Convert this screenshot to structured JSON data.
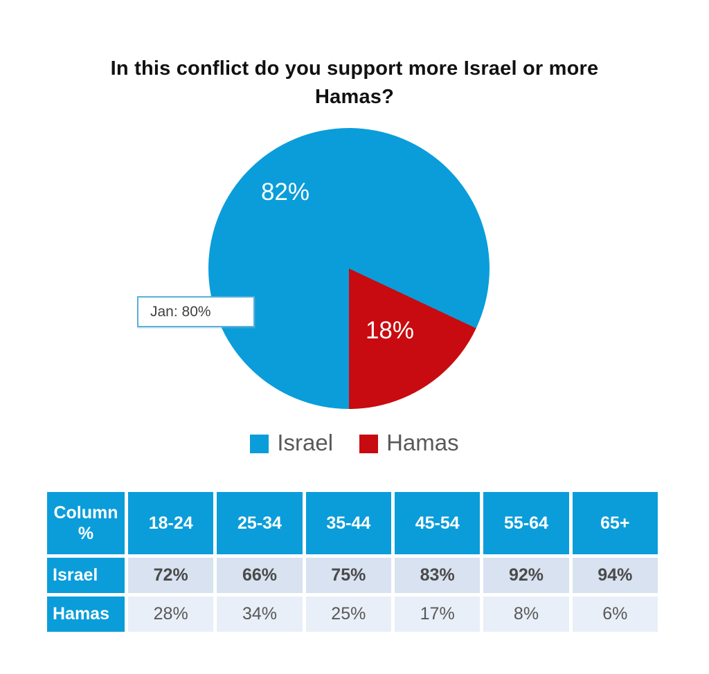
{
  "title": {
    "line1": "In this conflict do you support more Israel or more",
    "line2": "Hamas?"
  },
  "pie": {
    "israel_label": "82%",
    "hamas_label": "18%",
    "callout": "Jan: 80%"
  },
  "legend": {
    "items": [
      {
        "label": "Israel",
        "color": "#0a9dda"
      },
      {
        "label": "Hamas",
        "color": "#c80b10"
      }
    ]
  },
  "table": {
    "header": [
      "Column\n%",
      "18-24",
      "25-34",
      "35-44",
      "45-54",
      "55-64",
      "65+"
    ],
    "rows": [
      {
        "label": "Israel",
        "values": [
          "72%",
          "66%",
          "75%",
          "83%",
          "92%",
          "94%"
        ]
      },
      {
        "label": "Hamas",
        "values": [
          "28%",
          "34%",
          "25%",
          "17%",
          "8%",
          "6%"
        ]
      }
    ]
  },
  "colors": {
    "blue": "#0a9dda",
    "red": "#c80b10",
    "legend_gray": "#595959",
    "israel_row_bg": "#d8e2f0",
    "hamas_row_bg": "#e9eff8",
    "callout_border": "#58afdc"
  },
  "chart_data": [
    {
      "type": "pie",
      "title": "In this conflict do you support more Israel or more Hamas?",
      "labels": [
        "Israel",
        "Hamas"
      ],
      "values": [
        82,
        18
      ],
      "unit": "%",
      "colors": [
        "#0a9dda",
        "#c80b10"
      ],
      "data_labels": [
        "82%",
        "18%"
      ],
      "annotations": [
        "Jan: 80%"
      ],
      "legend_position": "bottom",
      "start_angle_deg": 180,
      "direction": "clockwise"
    },
    {
      "type": "table",
      "title": "Column %",
      "categories": [
        "18-24",
        "25-34",
        "35-44",
        "45-54",
        "55-64",
        "65+"
      ],
      "series": [
        {
          "name": "Israel",
          "values": [
            72,
            66,
            75,
            83,
            92,
            94
          ]
        },
        {
          "name": "Hamas",
          "values": [
            28,
            34,
            25,
            17,
            8,
            6
          ]
        }
      ],
      "unit": "%"
    }
  ]
}
